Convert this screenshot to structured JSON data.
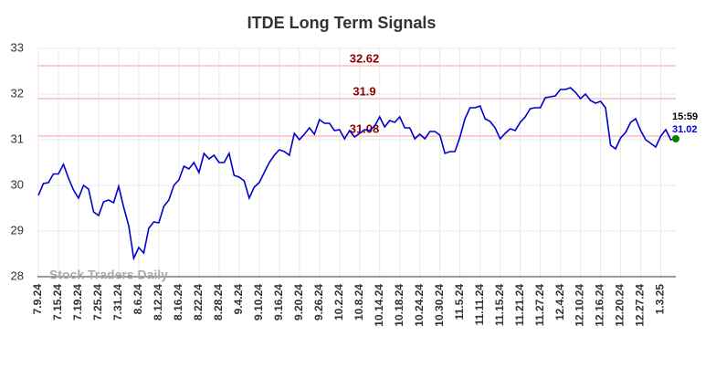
{
  "chart_data": {
    "type": "line",
    "title": "ITDE Long Term Signals",
    "categories": [
      "7.9.24",
      null,
      null,
      null,
      "7.15.24",
      null,
      null,
      null,
      "7.19.24",
      null,
      null,
      null,
      "7.25.24",
      null,
      null,
      null,
      "7.31.24",
      null,
      null,
      null,
      "8.6.24",
      null,
      null,
      null,
      "8.12.24",
      null,
      null,
      null,
      "8.16.24",
      null,
      null,
      null,
      "8.22.24",
      null,
      null,
      null,
      "8.28.24",
      null,
      null,
      null,
      "9.4.24",
      null,
      null,
      null,
      "9.10.24",
      null,
      null,
      null,
      "9.16.24",
      null,
      null,
      null,
      "9.20.24",
      null,
      null,
      null,
      "9.26.24",
      null,
      null,
      null,
      "10.2.24",
      null,
      null,
      null,
      "10.8.24",
      null,
      null,
      null,
      "10.14.24",
      null,
      null,
      null,
      "10.18.24",
      null,
      null,
      null,
      "10.24.24",
      null,
      null,
      null,
      "10.30.24",
      null,
      null,
      null,
      "11.5.24",
      null,
      null,
      null,
      "11.11.24",
      null,
      null,
      null,
      "11.15.24",
      null,
      null,
      null,
      "11.21.24",
      null,
      null,
      null,
      "11.27.24",
      null,
      null,
      null,
      "12.4.24",
      null,
      null,
      null,
      "12.10.24",
      null,
      null,
      null,
      "12.16.24",
      null,
      null,
      null,
      "12.20.24",
      null,
      null,
      null,
      "12.27.24",
      null,
      null,
      null,
      "1.3.25",
      null,
      null,
      null
    ],
    "series": [
      {
        "color": "#0000cc",
        "values": [
          29.78,
          30.04,
          30.06,
          30.25,
          30.25,
          30.46,
          30.16,
          29.9,
          29.72,
          30.0,
          29.92,
          29.42,
          29.34,
          29.64,
          29.68,
          29.62,
          29.98,
          29.52,
          29.12,
          28.4,
          28.64,
          28.52,
          29.06,
          29.2,
          29.18,
          29.54,
          29.68,
          30.0,
          30.12,
          30.42,
          30.36,
          30.5,
          30.28,
          30.7,
          30.58,
          30.66,
          30.5,
          30.5,
          30.7,
          30.22,
          30.18,
          30.1,
          29.72,
          29.96,
          30.06,
          30.28,
          30.5,
          30.66,
          30.78,
          30.74,
          30.66,
          31.14,
          31.0,
          31.12,
          31.26,
          31.12,
          31.44,
          31.36,
          31.36,
          31.2,
          31.22,
          31.02,
          31.2,
          31.06,
          31.14,
          31.22,
          31.2,
          31.3,
          31.5,
          31.28,
          31.42,
          31.38,
          31.5,
          31.26,
          31.26,
          31.02,
          31.12,
          31.02,
          31.18,
          31.18,
          31.1,
          30.7,
          30.74,
          30.74,
          31.06,
          31.46,
          31.7,
          31.7,
          31.74,
          31.46,
          31.4,
          31.26,
          31.02,
          31.14,
          31.24,
          31.2,
          31.38,
          31.5,
          31.68,
          31.7,
          31.7,
          31.92,
          31.94,
          31.96,
          32.1,
          32.1,
          32.14,
          32.04,
          31.9,
          32.0,
          31.86,
          31.8,
          31.84,
          31.7,
          30.88,
          30.8,
          31.04,
          31.16,
          31.38,
          31.46,
          31.2,
          31.0,
          30.92,
          30.84,
          31.08,
          31.22,
          31.0,
          31.02
        ]
      }
    ],
    "hlines": [
      32.62,
      31.9,
      31.08
    ],
    "hline_color": "#ffcccc",
    "hline_label_color": "#8b0000",
    "last_time": "15:59",
    "last_dot_color": "#008000",
    "watermark": "Stock Traders Daily",
    "ylim": [
      28,
      33
    ],
    "yticks": [
      28,
      29,
      30,
      31,
      32,
      33
    ],
    "grid": true
  }
}
